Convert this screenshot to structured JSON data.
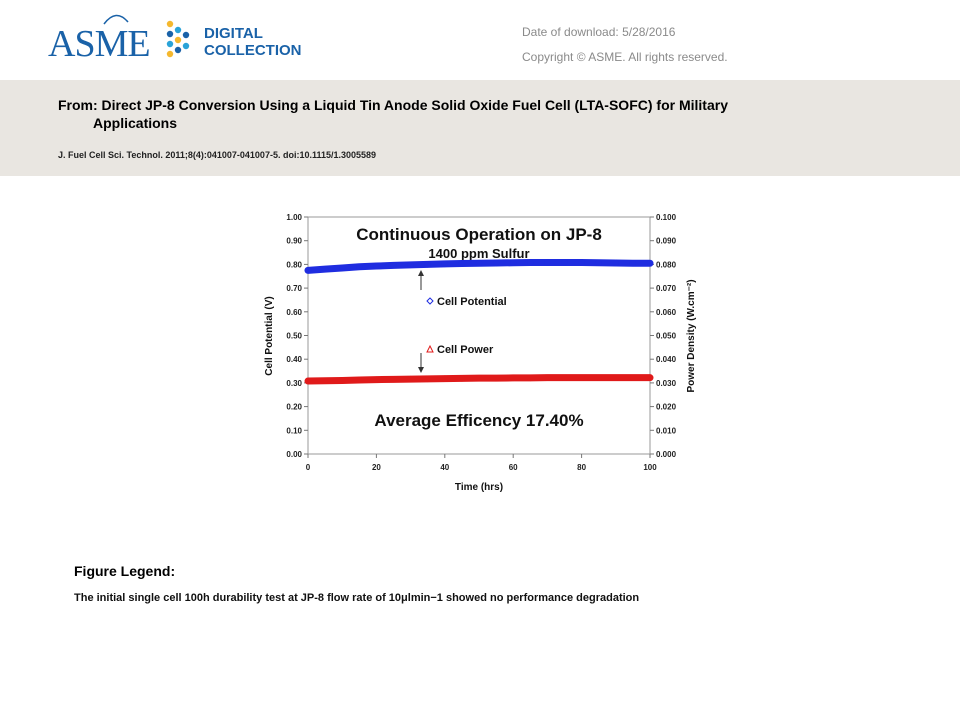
{
  "header": {
    "logo_text": "ASME",
    "logo_sub_1": "DIGITAL",
    "logo_sub_2": "COLLECTION",
    "download_date": "Date of download:  5/28/2016",
    "copyright": "Copyright © ASME. All rights reserved.",
    "brand_color": "#1a62a8",
    "logo_dot_colors": [
      "#f5b82e",
      "#2aa3d8",
      "#1a62a8"
    ]
  },
  "citation": {
    "title_line1": "From: Direct JP-8 Conversion Using a Liquid Tin Anode Solid Oxide Fuel Cell (LTA-SOFC) for Military",
    "title_line2": "Applications",
    "journal": "J. Fuel Cell Sci. Technol. 2011;8(4):041007-041007-5. doi:10.1115/1.3005589"
  },
  "chart_data": {
    "type": "scatter",
    "title": "Continuous Operation on JP-8",
    "subtitle": "1400 ppm Sulfur",
    "annotation": "Average Efficency 17.40%",
    "xlabel": "Time (hrs)",
    "ylabel_left": "Cell Potential (V)",
    "ylabel_right": "Power Density (W.cm⁻²)",
    "xlim": [
      0,
      100
    ],
    "ylim_left": [
      0,
      1.0
    ],
    "ylim_right": [
      0,
      0.1
    ],
    "x_ticks": [
      "0",
      "20",
      "40",
      "60",
      "80",
      "100"
    ],
    "y_ticks_left": [
      "0.00",
      "0.10",
      "0.20",
      "0.30",
      "0.40",
      "0.50",
      "0.60",
      "0.70",
      "0.80",
      "0.90",
      "1.00"
    ],
    "y_ticks_right": [
      "0.000",
      "0.010",
      "0.020",
      "0.030",
      "0.040",
      "0.050",
      "0.060",
      "0.070",
      "0.080",
      "0.090",
      "0.100"
    ],
    "grid": false,
    "series": [
      {
        "name": "Cell Potential",
        "axis": "left",
        "color": "#1f2de0",
        "marker": "diamond",
        "x": [
          0,
          5,
          10,
          15,
          20,
          25,
          30,
          35,
          40,
          45,
          50,
          55,
          60,
          65,
          70,
          75,
          80,
          85,
          90,
          95,
          100
        ],
        "values": [
          0.775,
          0.78,
          0.785,
          0.79,
          0.793,
          0.796,
          0.798,
          0.8,
          0.802,
          0.804,
          0.805,
          0.806,
          0.807,
          0.808,
          0.808,
          0.808,
          0.808,
          0.807,
          0.806,
          0.805,
          0.805
        ]
      },
      {
        "name": "Cell Power",
        "axis": "right",
        "color": "#e01a1a",
        "marker": "triangle",
        "x": [
          0,
          5,
          10,
          15,
          20,
          25,
          30,
          35,
          40,
          45,
          50,
          55,
          60,
          65,
          70,
          75,
          80,
          85,
          90,
          95,
          100
        ],
        "values": [
          0.0308,
          0.0309,
          0.031,
          0.0312,
          0.0314,
          0.0315,
          0.0316,
          0.0317,
          0.0318,
          0.0319,
          0.032,
          0.032,
          0.0321,
          0.0321,
          0.0322,
          0.0322,
          0.0322,
          0.0322,
          0.0322,
          0.0322,
          0.0322
        ]
      }
    ]
  },
  "figure_legend": {
    "heading": "Figure Legend:",
    "text": "The initial single cell 100h durability test at JP-8 flow rate of 10μlmin−1 showed no performance degradation"
  }
}
